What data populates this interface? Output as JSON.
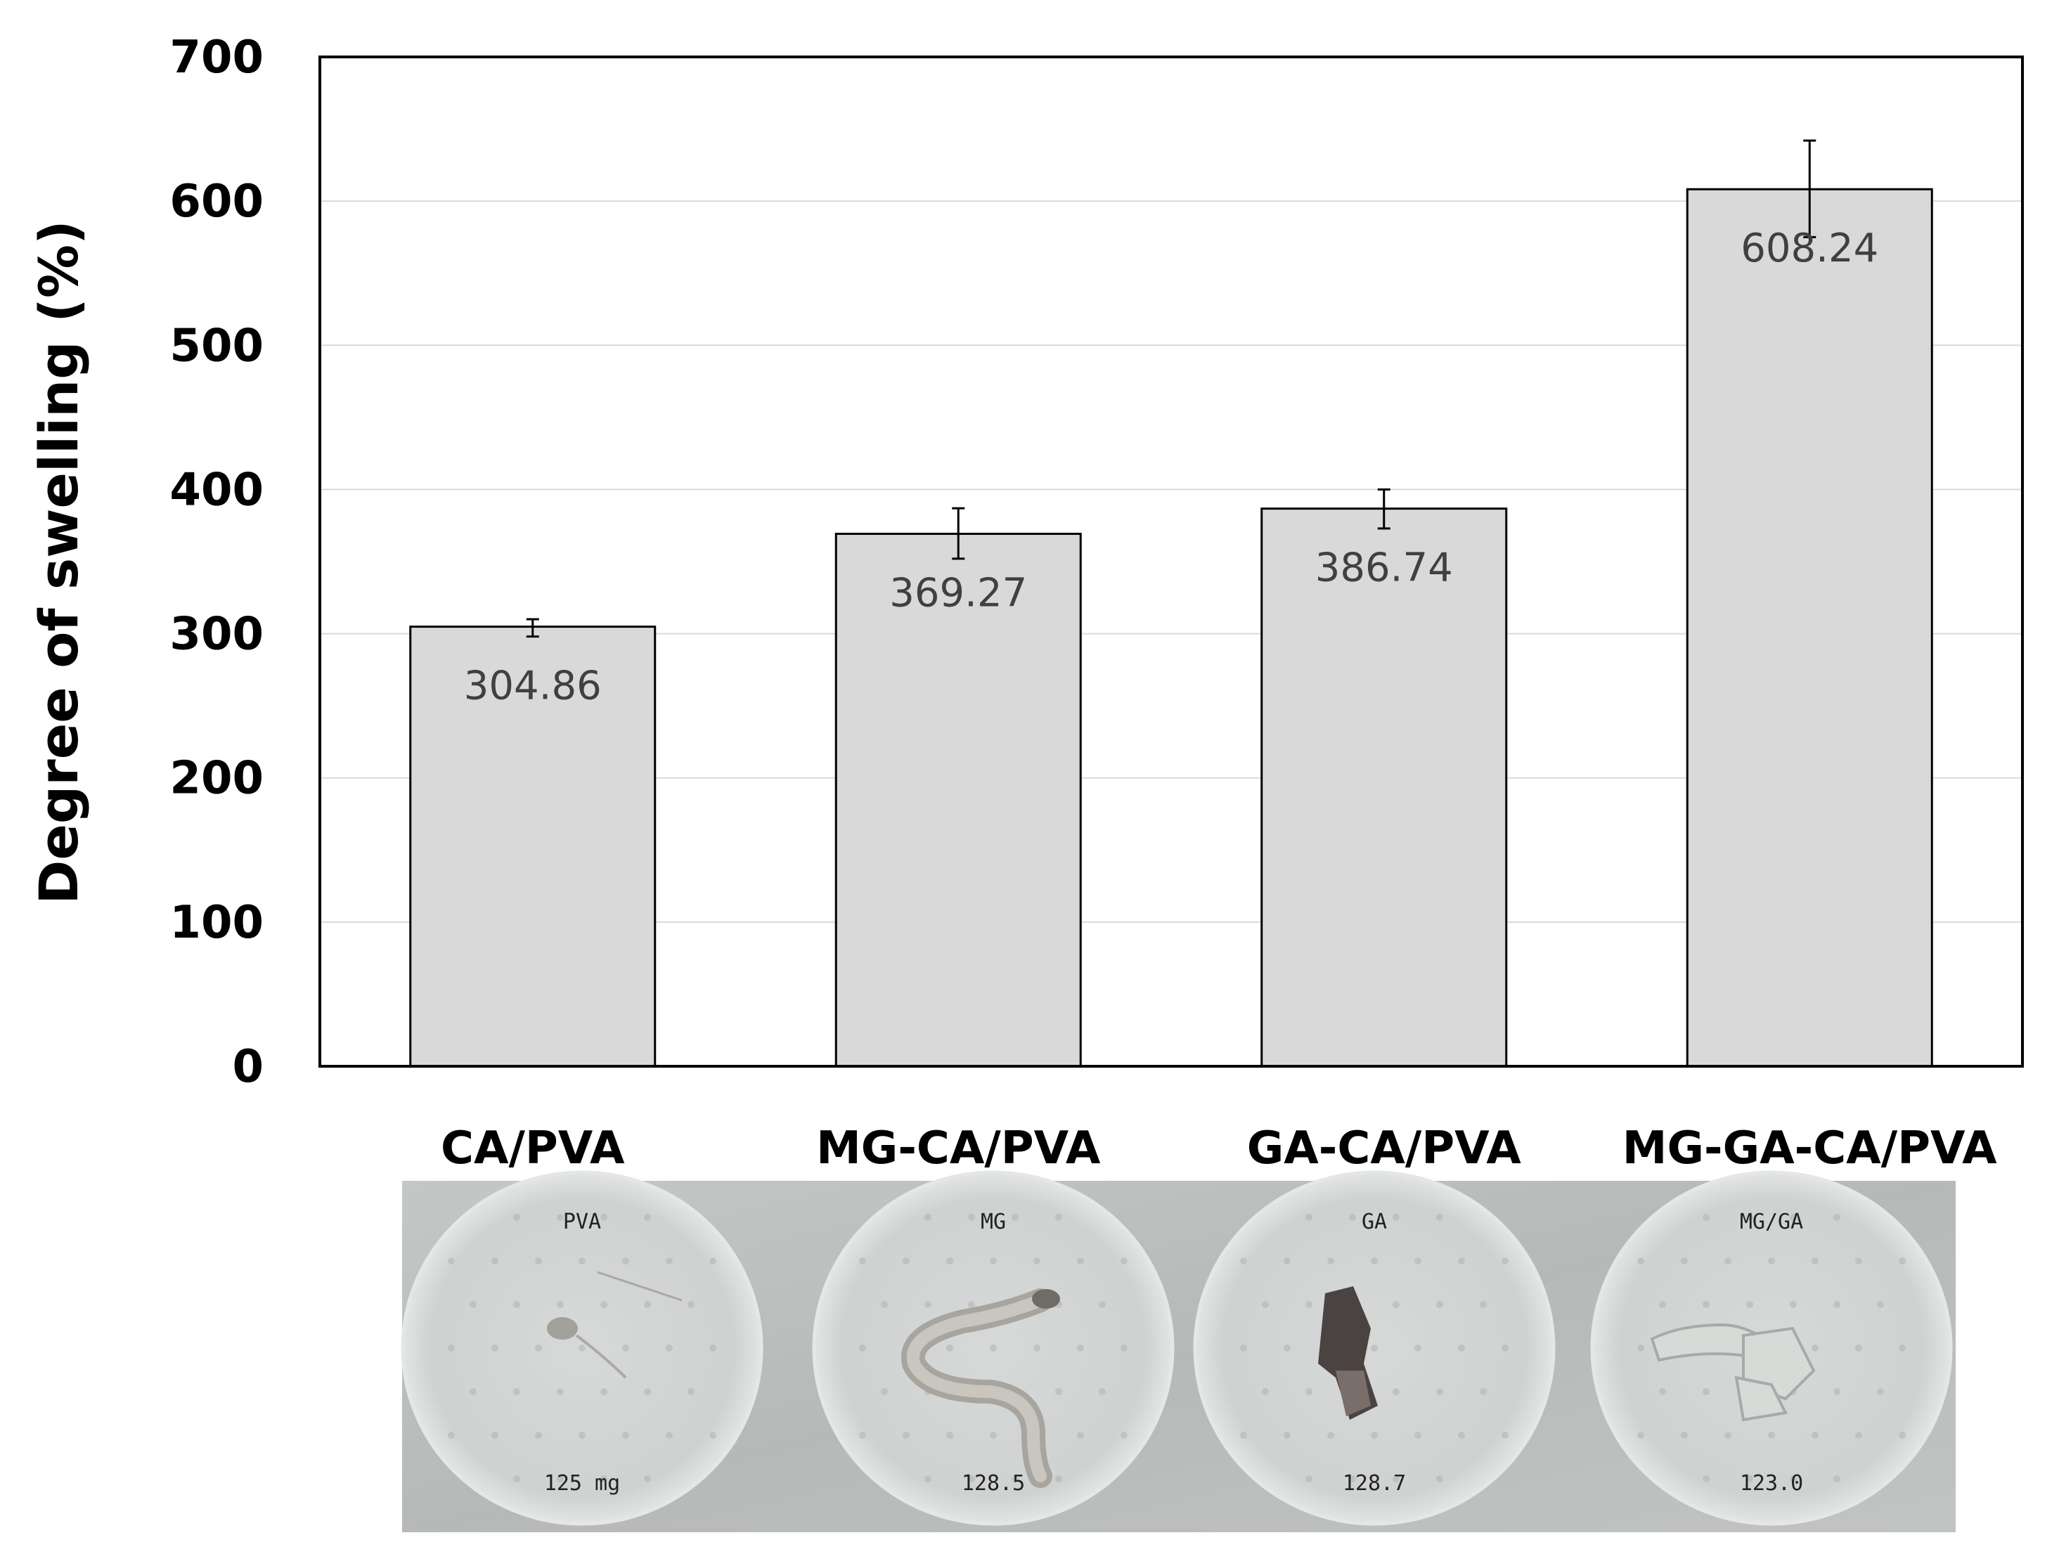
{
  "chart_data": {
    "type": "bar",
    "title": "",
    "xlabel": "",
    "ylabel": "Degree of swelling (%)",
    "ylim": [
      0,
      700
    ],
    "yticks": [
      0,
      100,
      200,
      300,
      400,
      500,
      600,
      700
    ],
    "grid": true,
    "categories": [
      "CA/PVA",
      "MG-CA/PVA",
      "GA-CA/PVA",
      "MG-GA-CA/PVA"
    ],
    "values": [
      304.86,
      369.27,
      386.74,
      608.24
    ],
    "value_labels": [
      "304.86",
      "369.27",
      "386.74",
      "608.24"
    ],
    "error_low": [
      298,
      352,
      373,
      575
    ],
    "error_high": [
      310,
      387,
      400,
      642
    ]
  },
  "photo": {
    "samples": [
      {
        "top_text": "PVA",
        "bottom_text": "125 mg"
      },
      {
        "top_text": "MG",
        "bottom_text": "128.5"
      },
      {
        "top_text": "GA",
        "bottom_text": "128.7"
      },
      {
        "top_text": "MG/GA",
        "bottom_text": "123.0"
      }
    ]
  },
  "colors": {
    "bar_fill": "#d9d9d9",
    "bar_stroke": "#000000",
    "grid": "#d9d9d9",
    "photo_background": "#b9bcbb",
    "dish": "#cdd1cf"
  }
}
